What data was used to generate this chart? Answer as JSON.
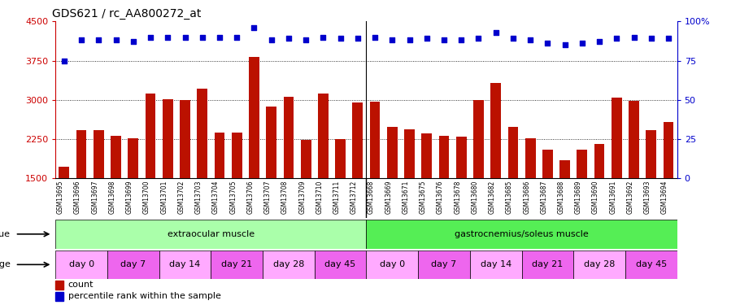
{
  "title": "GDS621 / rc_AA800272_at",
  "samples": [
    "GSM13695",
    "GSM13696",
    "GSM13697",
    "GSM13698",
    "GSM13699",
    "GSM13700",
    "GSM13701",
    "GSM13702",
    "GSM13703",
    "GSM13704",
    "GSM13705",
    "GSM13706",
    "GSM13707",
    "GSM13708",
    "GSM13709",
    "GSM13710",
    "GSM13711",
    "GSM13712",
    "GSM13668",
    "GSM13669",
    "GSM13671",
    "GSM13675",
    "GSM13676",
    "GSM13678",
    "GSM13680",
    "GSM13682",
    "GSM13685",
    "GSM13686",
    "GSM13687",
    "GSM13688",
    "GSM13689",
    "GSM13690",
    "GSM13691",
    "GSM13692",
    "GSM13693",
    "GSM13694"
  ],
  "counts": [
    1720,
    2420,
    2420,
    2320,
    2270,
    3120,
    3020,
    3000,
    3220,
    2370,
    2370,
    3820,
    2870,
    3060,
    2240,
    3120,
    2255,
    2950,
    2970,
    2490,
    2440,
    2355,
    2320,
    2295,
    2990,
    3320,
    2490,
    2260,
    2050,
    1840,
    2050,
    2160,
    3050,
    2980,
    2420,
    2580
  ],
  "percentiles": [
    75,
    88,
    88,
    88,
    87,
    90,
    90,
    90,
    90,
    90,
    90,
    96,
    88,
    89,
    88,
    90,
    89,
    89,
    90,
    88,
    88,
    89,
    88,
    88,
    89,
    93,
    89,
    88,
    86,
    85,
    86,
    87,
    89,
    90,
    89,
    89
  ],
  "ylim_left": [
    1500,
    4500
  ],
  "ylim_right": [
    0,
    100
  ],
  "yticks_left": [
    1500,
    2250,
    3000,
    3750,
    4500
  ],
  "yticks_right": [
    0,
    25,
    50,
    75,
    100
  ],
  "bar_color": "#bb1100",
  "dot_color": "#0000cc",
  "bg_color": "#ffffff",
  "xticklabel_bg": "#cccccc",
  "tissue_colors": [
    "#aaffaa",
    "#66ee66"
  ],
  "age_colors": [
    "#ffaaff",
    "#ee66ee"
  ],
  "tissue_groups": [
    {
      "label": "extraocular muscle",
      "start": 0,
      "end": 18,
      "color": "#aaffaa"
    },
    {
      "label": "gastrocnemius/soleus muscle",
      "start": 18,
      "end": 36,
      "color": "#55ee55"
    }
  ],
  "age_groups": [
    {
      "label": "day 0",
      "start": 0,
      "end": 3
    },
    {
      "label": "day 7",
      "start": 3,
      "end": 6
    },
    {
      "label": "day 14",
      "start": 6,
      "end": 9
    },
    {
      "label": "day 21",
      "start": 9,
      "end": 12
    },
    {
      "label": "day 28",
      "start": 12,
      "end": 15
    },
    {
      "label": "day 45",
      "start": 15,
      "end": 18
    },
    {
      "label": "day 0",
      "start": 18,
      "end": 21
    },
    {
      "label": "day 7",
      "start": 21,
      "end": 24
    },
    {
      "label": "day 14",
      "start": 24,
      "end": 27
    },
    {
      "label": "day 21",
      "start": 27,
      "end": 30
    },
    {
      "label": "day 28",
      "start": 30,
      "end": 33
    },
    {
      "label": "day 45",
      "start": 33,
      "end": 36
    }
  ],
  "age_color_cycle": [
    "#ffaaff",
    "#ee66ee"
  ],
  "grid_lines": [
    2250,
    3000,
    3750
  ],
  "left_label_color": "#cc0000",
  "right_label_color": "#0000cc"
}
